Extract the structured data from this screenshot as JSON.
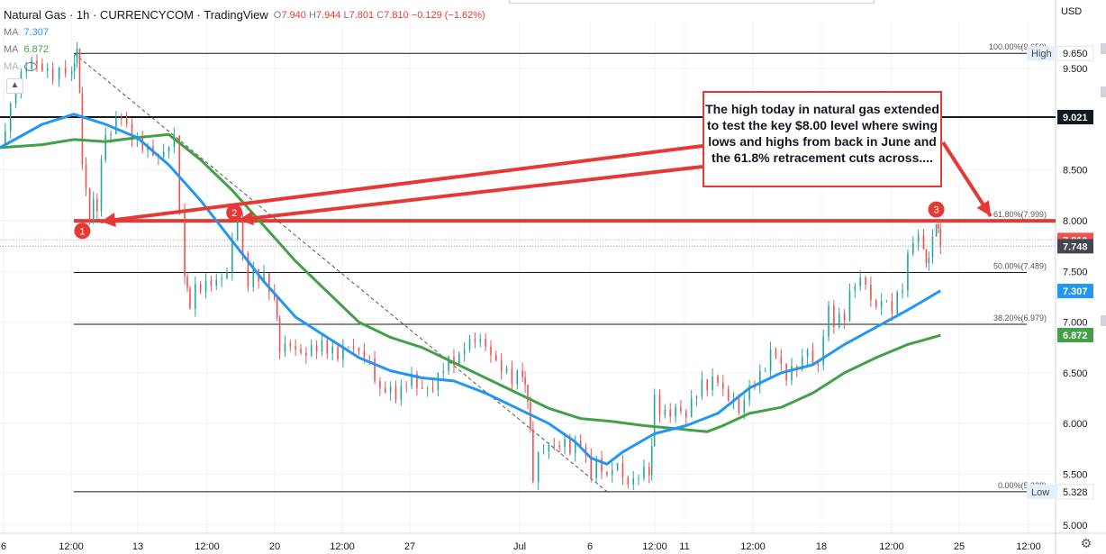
{
  "legend": {
    "symbol": "Natural Gas · 1h · CURRENCYCOM · TradingView",
    "ohlc": [
      {
        "k": "O",
        "v": "7.940"
      },
      {
        "k": "H",
        "v": "7.944"
      },
      {
        "k": "L",
        "v": "7.801"
      },
      {
        "k": "C",
        "v": "7.810"
      }
    ],
    "change": "−0.129 (−1.62%)",
    "ma1_label": "MA",
    "ma1_value": "7.307",
    "ma2_label": "MA",
    "ma2_value": "6.872",
    "ma3_label": "MA"
  },
  "currency": "USD",
  "annotation": "The high today in natural gas extended to test the key $8.00 level where swing lows and highs from back in June and the 61.8% retracement cuts across....",
  "colors": {
    "up": "#26a69a",
    "down": "#ef5350",
    "ma_fast": "#2196f3",
    "ma_slow": "#43a047",
    "arrow": "#e53935",
    "axis_text": "#131722"
  },
  "chart_data": {
    "type": "line",
    "title": "Natural Gas, 1h, CURRENCYCOM",
    "x_ticks": [
      "6",
      "12:00",
      "13",
      "12:00",
      "20",
      "12:00",
      "27",
      "Jul",
      "6",
      "12:00",
      "11",
      "12:00",
      "18",
      "12:00",
      "25",
      "12:00"
    ],
    "y_ticks": [
      "5.000",
      "5.500",
      "6.000",
      "6.500",
      "7.000",
      "7.500",
      "8.000",
      "8.500",
      "9.000",
      "9.500"
    ],
    "ylim": [
      4.85,
      10.15
    ],
    "grid": true,
    "price_line_labels": [
      {
        "value": "9.650",
        "tag": "High",
        "style": "plain"
      },
      {
        "value": "9.021",
        "style": "black"
      },
      {
        "value": "7.810",
        "style": "red"
      },
      {
        "value": "7.748",
        "style": "dark"
      },
      {
        "value": "7.307",
        "style": "blue"
      },
      {
        "value": "6.872",
        "style": "green"
      },
      {
        "value": "5.328",
        "tag": "Low",
        "style": "plain"
      }
    ],
    "fib_levels": [
      {
        "ratio": "100.00%",
        "value": "(9.650)",
        "price": 9.65
      },
      {
        "ratio": "61.80%",
        "value": "(7.999)",
        "price": 7.999
      },
      {
        "ratio": "50.00%",
        "value": "(7.489)",
        "price": 7.489
      },
      {
        "ratio": "38.20%",
        "value": "(6.979)",
        "price": 6.979
      },
      {
        "ratio": "0.00%",
        "value": "(5.328)",
        "price": 5.328
      }
    ],
    "resistance": 7.999,
    "horizontal_line": 9.021,
    "trendline": {
      "from": {
        "t": 0.07,
        "p": 9.65
      },
      "to": {
        "t": 0.575,
        "p": 5.33
      }
    },
    "markers": [
      {
        "label": "1",
        "t": 0.078,
        "p": 7.9
      },
      {
        "label": "2",
        "t": 0.222,
        "p": 8.08
      },
      {
        "label": "3",
        "t": 0.887,
        "p": 8.11
      }
    ],
    "close_path": [
      [
        0.0,
        8.75
      ],
      [
        0.015,
        9.3
      ],
      [
        0.03,
        9.5
      ],
      [
        0.05,
        9.35
      ],
      [
        0.068,
        9.55
      ],
      [
        0.073,
        9.65
      ],
      [
        0.078,
        8.6
      ],
      [
        0.085,
        8.05
      ],
      [
        0.092,
        8.2
      ],
      [
        0.1,
        8.8
      ],
      [
        0.115,
        9.05
      ],
      [
        0.13,
        8.85
      ],
      [
        0.15,
        8.7
      ],
      [
        0.165,
        8.9
      ],
      [
        0.175,
        7.45
      ],
      [
        0.18,
        7.25
      ],
      [
        0.2,
        7.35
      ],
      [
        0.215,
        7.5
      ],
      [
        0.225,
        7.95
      ],
      [
        0.235,
        7.45
      ],
      [
        0.25,
        7.4
      ],
      [
        0.26,
        7.1
      ],
      [
        0.265,
        6.75
      ],
      [
        0.28,
        6.7
      ],
      [
        0.3,
        6.8
      ],
      [
        0.315,
        6.7
      ],
      [
        0.33,
        6.85
      ],
      [
        0.345,
        6.75
      ],
      [
        0.36,
        6.3
      ],
      [
        0.375,
        6.2
      ],
      [
        0.39,
        6.4
      ],
      [
        0.405,
        6.35
      ],
      [
        0.42,
        6.65
      ],
      [
        0.435,
        6.7
      ],
      [
        0.45,
        6.8
      ],
      [
        0.465,
        6.6
      ],
      [
        0.48,
        6.45
      ],
      [
        0.495,
        6.55
      ],
      [
        0.5,
        6.15
      ],
      [
        0.505,
        5.55
      ],
      [
        0.52,
        5.7
      ],
      [
        0.535,
        5.75
      ],
      [
        0.55,
        5.85
      ],
      [
        0.56,
        5.6
      ],
      [
        0.575,
        5.4
      ],
      [
        0.585,
        5.55
      ],
      [
        0.6,
        5.5
      ],
      [
        0.615,
        5.55
      ],
      [
        0.62,
        6.2
      ],
      [
        0.635,
        6.15
      ],
      [
        0.65,
        6.05
      ],
      [
        0.665,
        6.3
      ],
      [
        0.68,
        6.4
      ],
      [
        0.69,
        6.3
      ],
      [
        0.7,
        6.1
      ],
      [
        0.71,
        6.35
      ],
      [
        0.725,
        6.6
      ],
      [
        0.735,
        6.65
      ],
      [
        0.745,
        6.5
      ],
      [
        0.755,
        6.55
      ],
      [
        0.765,
        6.7
      ],
      [
        0.775,
        6.6
      ],
      [
        0.785,
        7.05
      ],
      [
        0.8,
        7.15
      ],
      [
        0.81,
        7.4
      ],
      [
        0.82,
        7.35
      ],
      [
        0.83,
        7.2
      ],
      [
        0.84,
        7.1
      ],
      [
        0.855,
        7.45
      ],
      [
        0.865,
        7.85
      ],
      [
        0.875,
        7.7
      ],
      [
        0.88,
        7.55
      ],
      [
        0.887,
        7.94
      ],
      [
        0.891,
        7.81
      ]
    ],
    "ma_fast": [
      [
        0.0,
        8.72
      ],
      [
        0.04,
        8.95
      ],
      [
        0.07,
        9.05
      ],
      [
        0.1,
        8.95
      ],
      [
        0.13,
        8.82
      ],
      [
        0.16,
        8.55
      ],
      [
        0.19,
        8.2
      ],
      [
        0.22,
        7.8
      ],
      [
        0.25,
        7.4
      ],
      [
        0.28,
        7.05
      ],
      [
        0.31,
        6.85
      ],
      [
        0.34,
        6.65
      ],
      [
        0.37,
        6.52
      ],
      [
        0.4,
        6.45
      ],
      [
        0.43,
        6.42
      ],
      [
        0.46,
        6.3
      ],
      [
        0.49,
        6.15
      ],
      [
        0.52,
        6.0
      ],
      [
        0.545,
        5.82
      ],
      [
        0.56,
        5.66
      ],
      [
        0.575,
        5.6
      ],
      [
        0.59,
        5.72
      ],
      [
        0.62,
        5.9
      ],
      [
        0.65,
        5.98
      ],
      [
        0.68,
        6.1
      ],
      [
        0.71,
        6.35
      ],
      [
        0.74,
        6.5
      ],
      [
        0.77,
        6.58
      ],
      [
        0.8,
        6.78
      ],
      [
        0.83,
        6.95
      ],
      [
        0.86,
        7.12
      ],
      [
        0.891,
        7.31
      ]
    ],
    "ma_slow": [
      [
        0.0,
        8.72
      ],
      [
        0.04,
        8.75
      ],
      [
        0.07,
        8.8
      ],
      [
        0.1,
        8.78
      ],
      [
        0.13,
        8.82
      ],
      [
        0.16,
        8.85
      ],
      [
        0.19,
        8.6
      ],
      [
        0.22,
        8.3
      ],
      [
        0.25,
        7.95
      ],
      [
        0.28,
        7.6
      ],
      [
        0.31,
        7.3
      ],
      [
        0.34,
        7.0
      ],
      [
        0.37,
        6.85
      ],
      [
        0.4,
        6.75
      ],
      [
        0.43,
        6.6
      ],
      [
        0.46,
        6.45
      ],
      [
        0.49,
        6.3
      ],
      [
        0.52,
        6.15
      ],
      [
        0.55,
        6.05
      ],
      [
        0.58,
        6.02
      ],
      [
        0.61,
        5.98
      ],
      [
        0.64,
        5.95
      ],
      [
        0.67,
        5.92
      ],
      [
        0.685,
        5.98
      ],
      [
        0.71,
        6.1
      ],
      [
        0.74,
        6.16
      ],
      [
        0.77,
        6.3
      ],
      [
        0.8,
        6.5
      ],
      [
        0.83,
        6.65
      ],
      [
        0.86,
        6.78
      ],
      [
        0.891,
        6.87
      ]
    ]
  }
}
